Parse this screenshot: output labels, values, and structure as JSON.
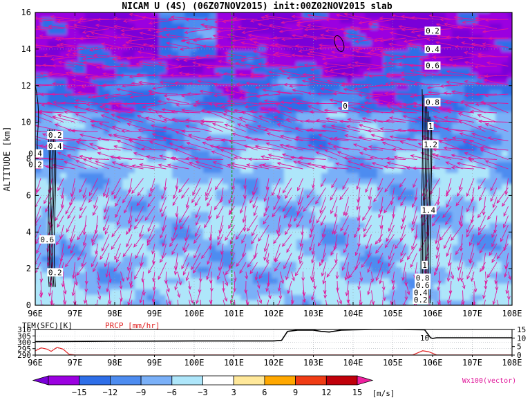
{
  "title": "NICAM U (4S) (06Z07NOV2015) init:00Z02NOV2015 slab",
  "chart_data": {
    "type": "heatmap",
    "main": {
      "ylabel": "ALTITUDE [km]",
      "x_ticks": [
        "96E",
        "97E",
        "98E",
        "99E",
        "100E",
        "101E",
        "102E",
        "103E",
        "104E",
        "105E",
        "106E",
        "107E",
        "108E"
      ],
      "y_ticks": [
        "0",
        "2",
        "4",
        "6",
        "8",
        "10",
        "12",
        "14",
        "16"
      ],
      "xlim": [
        96,
        108
      ],
      "ylim": [
        0,
        16
      ],
      "grid": true,
      "reference_line_lon": 100.95,
      "contour_labels": [
        {
          "text": "0.2",
          "lon": 106.0,
          "alt": 15.0
        },
        {
          "text": "0.4",
          "lon": 106.0,
          "alt": 14.0
        },
        {
          "text": "0.6",
          "lon": 106.0,
          "alt": 13.1
        },
        {
          "text": "0.8",
          "lon": 106.0,
          "alt": 11.1
        },
        {
          "text": "1",
          "lon": 105.95,
          "alt": 9.8
        },
        {
          "text": "1.2",
          "lon": 105.95,
          "alt": 8.8
        },
        {
          "text": "1.4",
          "lon": 105.9,
          "alt": 5.2
        },
        {
          "text": "1",
          "lon": 105.8,
          "alt": 2.2
        },
        {
          "text": "0.8",
          "lon": 105.75,
          "alt": 1.5
        },
        {
          "text": "0.6",
          "lon": 105.75,
          "alt": 1.1
        },
        {
          "text": "0.4",
          "lon": 105.7,
          "alt": 0.7
        },
        {
          "text": "0.2",
          "lon": 105.7,
          "alt": 0.3
        },
        {
          "text": "0",
          "lon": 103.8,
          "alt": 10.9
        },
        {
          "text": "0.2",
          "lon": 96.5,
          "alt": 9.3
        },
        {
          "text": "0.4",
          "lon": 96.5,
          "alt": 8.7
        },
        {
          "text": "0.4",
          "lon": 96.0,
          "alt": 8.3
        },
        {
          "text": "0.2",
          "lon": 96.0,
          "alt": 7.7
        },
        {
          "text": "0.6",
          "lon": 96.3,
          "alt": 3.6
        },
        {
          "text": "0.2",
          "lon": 96.5,
          "alt": 1.8
        }
      ]
    },
    "sub": {
      "label_left": "TEM(SFC)[K]",
      "label_right": "PRCP [mm/hr]",
      "left_ticks": [
        "310",
        "305",
        "300",
        "295",
        "290"
      ],
      "right_ticks": [
        "15",
        "10",
        "5",
        "0"
      ],
      "ylim_left": [
        290,
        310
      ],
      "ylim_right": [
        0,
        15
      ],
      "x_ticks": [
        "96E",
        "97E",
        "98E",
        "99E",
        "100E",
        "101E",
        "102E",
        "103E",
        "104E",
        "105E",
        "106E",
        "107E",
        "108E"
      ],
      "annotation": "10",
      "temperature": [
        [
          96.0,
          300.5
        ],
        [
          98.0,
          300.8
        ],
        [
          100.0,
          301.0
        ],
        [
          102.0,
          301.0
        ],
        [
          102.2,
          301.5
        ],
        [
          102.35,
          308.5
        ],
        [
          102.6,
          309.5
        ],
        [
          103.0,
          309.5
        ],
        [
          103.2,
          308.5
        ],
        [
          103.4,
          308.0
        ],
        [
          103.7,
          309.5
        ],
        [
          104.5,
          310.0
        ],
        [
          105.0,
          310.0
        ],
        [
          105.8,
          309.8
        ],
        [
          105.95,
          303.5
        ],
        [
          106.0,
          303.0
        ],
        [
          106.1,
          303.5
        ],
        [
          107.0,
          303.5
        ],
        [
          108.0,
          303.5
        ]
      ],
      "precip": [
        [
          96.0,
          2.5
        ],
        [
          96.15,
          4.2
        ],
        [
          96.3,
          3.5
        ],
        [
          96.4,
          2.2
        ],
        [
          96.55,
          4.5
        ],
        [
          96.7,
          3.5
        ],
        [
          96.85,
          0.5
        ],
        [
          97.0,
          0.1
        ],
        [
          105.5,
          0.1
        ],
        [
          105.75,
          2.5
        ],
        [
          105.9,
          2.0
        ],
        [
          106.1,
          0.1
        ],
        [
          108.0,
          0.1
        ]
      ]
    },
    "colorbar": {
      "tick_labels": [
        "−15",
        "−12",
        "−9",
        "−6",
        "−3",
        "3",
        "6",
        "9",
        "12",
        "15"
      ],
      "unit": "[m/s]",
      "colors": [
        "#9b00e0",
        "#2e6ee8",
        "#4d8cf0",
        "#7ab0f8",
        "#aee6fa",
        "#ffffff",
        "#ffe89a",
        "#ffa800",
        "#f03c14",
        "#c0000a"
      ],
      "under_color": "#7a00d8",
      "over_color": "#f020a0"
    },
    "vector_label": "Wx100(vector)"
  }
}
